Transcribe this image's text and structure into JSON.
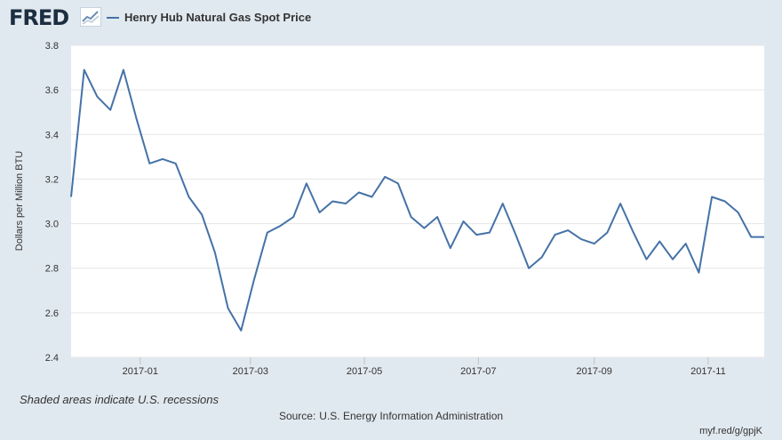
{
  "header": {
    "logo_text": "FRED",
    "logo_icon": "fred-chart-icon",
    "series_label": "Henry Hub Natural Gas Spot Price"
  },
  "footer": {
    "recession_note": "Shaded areas indicate U.S. recessions",
    "source_label": "Source:",
    "source_name": "U.S. Energy Information Administration",
    "short_link": "myf.red/g/gpjK"
  },
  "colors": {
    "page_background": "#e1e9f0",
    "plot_background": "#ffffff",
    "gridline": "#e6e6e6",
    "series_line": "#4572a7",
    "text": "#333333"
  },
  "chart_data": {
    "type": "line",
    "title": "",
    "xlabel": "",
    "ylabel": "Dollars per Million BTU",
    "ylim": [
      2.4,
      3.8
    ],
    "yticks": [
      "2.4",
      "2.6",
      "2.8",
      "3.0",
      "3.2",
      "3.4",
      "3.6",
      "3.8"
    ],
    "x_range": [
      "2016-11-25",
      "2017-12-01"
    ],
    "xticks": [
      "2017-01",
      "2017-03",
      "2017-05",
      "2017-07",
      "2017-09",
      "2017-11"
    ],
    "grid": true,
    "legend": "top-left",
    "series": [
      {
        "name": "Henry Hub Natural Gas Spot Price",
        "x": [
          "2016-11-25",
          "2016-12-02",
          "2016-12-09",
          "2016-12-16",
          "2016-12-23",
          "2016-12-30",
          "2017-01-06",
          "2017-01-13",
          "2017-01-20",
          "2017-01-27",
          "2017-02-03",
          "2017-02-10",
          "2017-02-17",
          "2017-02-24",
          "2017-03-03",
          "2017-03-10",
          "2017-03-17",
          "2017-03-24",
          "2017-03-31",
          "2017-04-07",
          "2017-04-14",
          "2017-04-21",
          "2017-04-28",
          "2017-05-05",
          "2017-05-12",
          "2017-05-19",
          "2017-05-26",
          "2017-06-02",
          "2017-06-09",
          "2017-06-16",
          "2017-06-23",
          "2017-06-30",
          "2017-07-07",
          "2017-07-14",
          "2017-07-21",
          "2017-07-28",
          "2017-08-04",
          "2017-08-11",
          "2017-08-18",
          "2017-08-25",
          "2017-09-01",
          "2017-09-08",
          "2017-09-15",
          "2017-09-22",
          "2017-09-29",
          "2017-10-06",
          "2017-10-13",
          "2017-10-20",
          "2017-10-27",
          "2017-11-03",
          "2017-11-10",
          "2017-11-17",
          "2017-11-24",
          "2017-12-01"
        ],
        "values": [
          3.12,
          3.69,
          3.57,
          3.51,
          3.69,
          3.47,
          3.27,
          3.29,
          3.27,
          3.12,
          3.04,
          2.87,
          2.62,
          2.52,
          2.75,
          2.96,
          2.99,
          3.03,
          3.18,
          3.05,
          3.1,
          3.09,
          3.14,
          3.12,
          3.21,
          3.18,
          3.03,
          2.98,
          3.03,
          2.89,
          3.01,
          2.95,
          2.96,
          3.09,
          2.95,
          2.8,
          2.85,
          2.95,
          2.97,
          2.93,
          2.91,
          2.96,
          3.09,
          2.96,
          2.84,
          2.92,
          2.84,
          2.91,
          2.78,
          3.12,
          3.1,
          3.05,
          2.94,
          2.94
        ]
      }
    ]
  }
}
